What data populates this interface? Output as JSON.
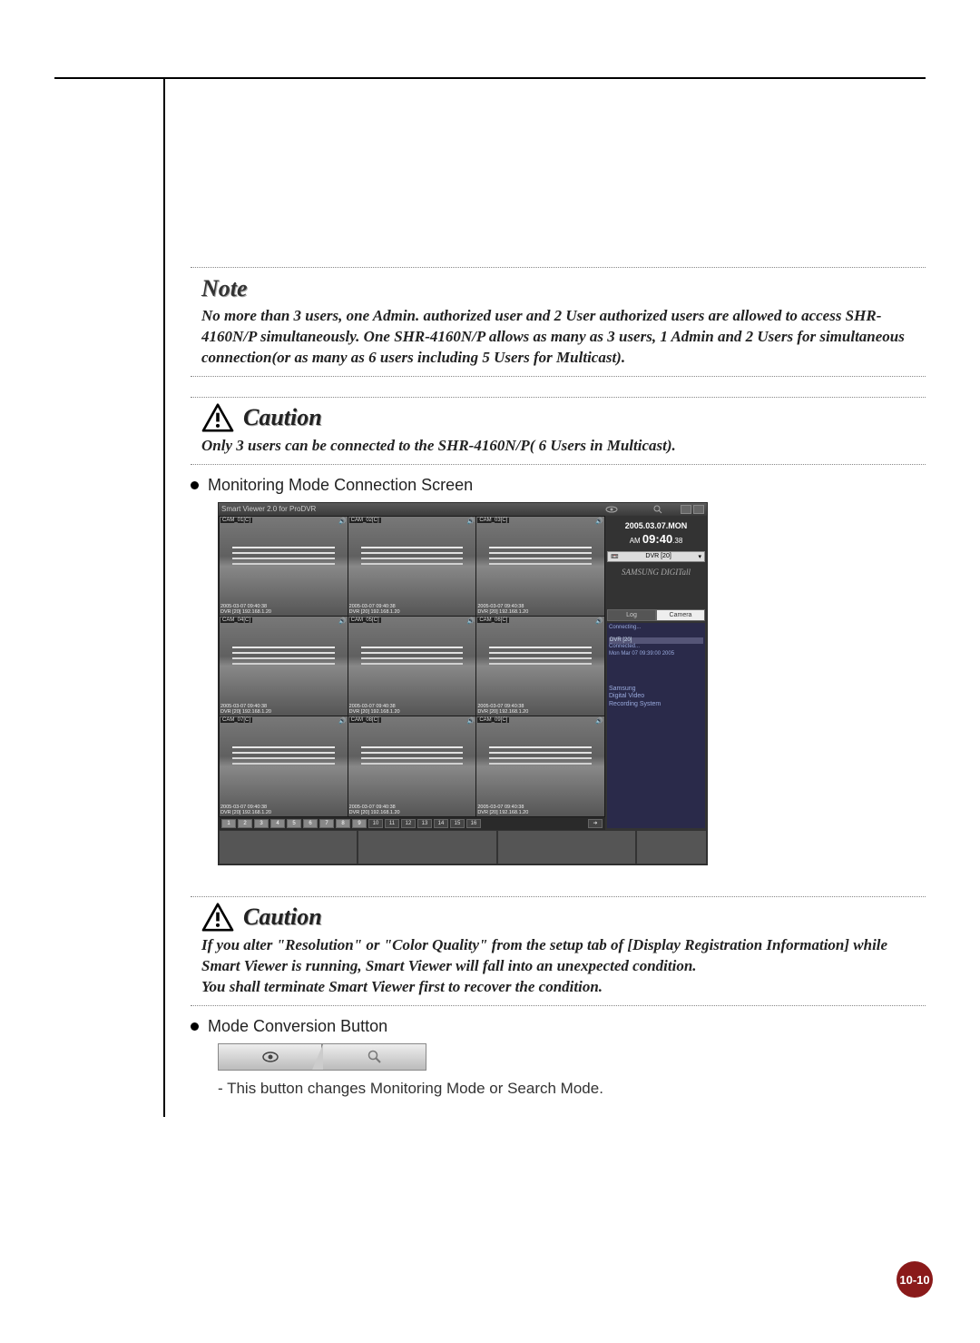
{
  "note": {
    "title": "Note",
    "body": "No more than 3 users, one Admin. authorized user and 2 User authorized users are allowed to access SHR-4160N/P simultaneously. One SHR-4160N/P allows as many as 3 users, 1 Admin and 2 Users for simultaneous connection(or as many as 6 users including 5 Users for Multicast)."
  },
  "caution1": {
    "title": "Caution",
    "body": "Only 3 users can be connected to the SHR-4160N/P( 6 Users in Multicast)."
  },
  "bullet1": "Monitoring Mode Connection Screen",
  "screenshot": {
    "title": "Smart Viewer 2.0 for ProDVR",
    "date": "2005.03.07.MON",
    "time_prefix": "AM ",
    "time_main": "09:40",
    "time_sec": ".38",
    "dvr_sel": "DVR [20]",
    "samsung": "SAMSUNG DIGITall",
    "tab_log": "Log",
    "tab_camera": "Camera",
    "log_connecting": "Connecting...",
    "log_dvr": "DVR [20]",
    "log_line1": "Connected...",
    "log_line2": "Mon Mar 07 09:39:00 2005",
    "recsys_l1": "Samsung",
    "recsys_l2": "Digital Video",
    "recsys_l3": "Recording System",
    "cams": [
      {
        "label": "CAM_01[C]",
        "ts1": "2005-03-07 09:40:38",
        "ts2": "DVR [20] 192.168.1.20"
      },
      {
        "label": "CAM_02[C]",
        "ts1": "2005-03-07 09:40:38",
        "ts2": "DVR [20] 192.168.1.20"
      },
      {
        "label": "CAM_03[C]",
        "ts1": "2005-03-07 09:40:38",
        "ts2": "DVR [20] 192.168.1.20"
      },
      {
        "label": "CAM_04[C]",
        "ts1": "2005-03-07 09:40:38",
        "ts2": "DVR [20] 192.168.1.20"
      },
      {
        "label": "CAM_05[C]",
        "ts1": "2005-03-07 09:40:38",
        "ts2": "DVR [20] 192.168.1.20"
      },
      {
        "label": "CAM_06[C]",
        "ts1": "2005-03-07 09:40:38",
        "ts2": "DVR [20] 192.168.1.20"
      },
      {
        "label": "CAM_07[C]",
        "ts1": "2005-03-07 09:40:38",
        "ts2": "DVR [20] 192.168.1.20"
      },
      {
        "label": "CAM_08[C]",
        "ts1": "2005-03-07 09:40:38",
        "ts2": "DVR [20] 192.168.1.20"
      },
      {
        "label": "CAM_09[C]",
        "ts1": "2005-03-07 09:40:38",
        "ts2": "DVR [20] 192.168.1.20"
      }
    ],
    "channels": [
      "1",
      "2",
      "3",
      "4",
      "5",
      "6",
      "7",
      "8",
      "9",
      "10",
      "11",
      "12",
      "13",
      "14",
      "15",
      "16"
    ]
  },
  "caution2": {
    "title": "Caution",
    "body": "If you alter \"Resolution\" or \"Color Quality\" from the setup tab of [Display Registration Information] while Smart Viewer is running, Smart Viewer will fall into an unexpected condition.\nYou shall terminate Smart Viewer first to recover the condition."
  },
  "bullet2": "Mode Conversion Button",
  "sub_text": "- This button changes Monitoring Mode or Search Mode.",
  "page_num": "10-10"
}
